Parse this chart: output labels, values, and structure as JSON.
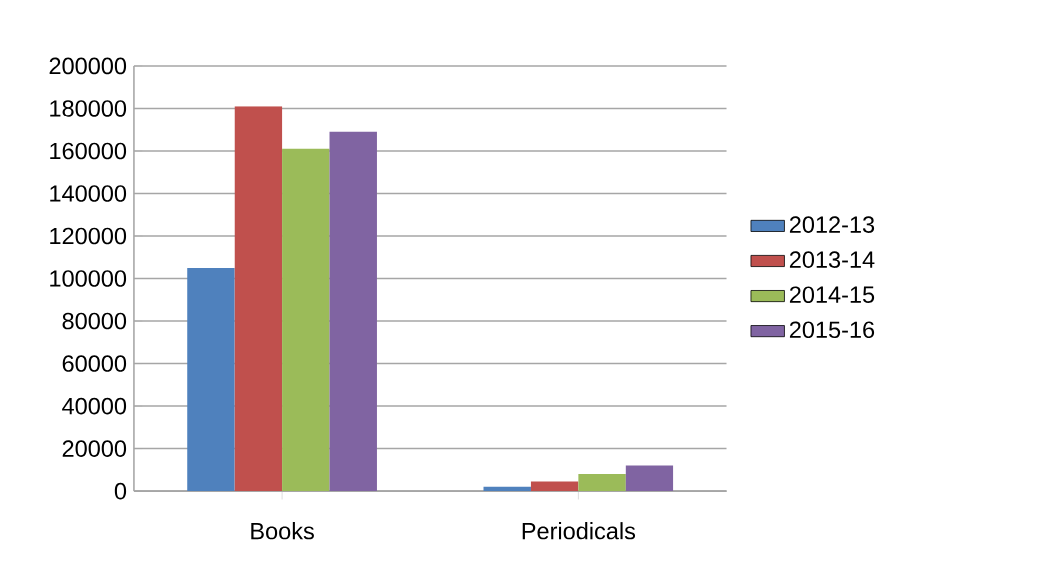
{
  "chart_data": {
    "type": "bar",
    "categories": [
      "Books",
      "Periodicals"
    ],
    "series": [
      {
        "name": "2012-13",
        "color": "#4f81bd",
        "values": [
          105000,
          2000
        ]
      },
      {
        "name": "2013-14",
        "color": "#c0504d",
        "values": [
          181000,
          4500
        ]
      },
      {
        "name": "2014-15",
        "color": "#9bbb59",
        "values": [
          161000,
          8000
        ]
      },
      {
        "name": "2015-16",
        "color": "#8064a2",
        "values": [
          169000,
          12000
        ]
      }
    ],
    "ylim": [
      0,
      200000
    ],
    "yticks": [
      0,
      20000,
      40000,
      60000,
      80000,
      100000,
      120000,
      140000,
      160000,
      180000,
      200000
    ],
    "grid": "y",
    "legend": "right"
  }
}
